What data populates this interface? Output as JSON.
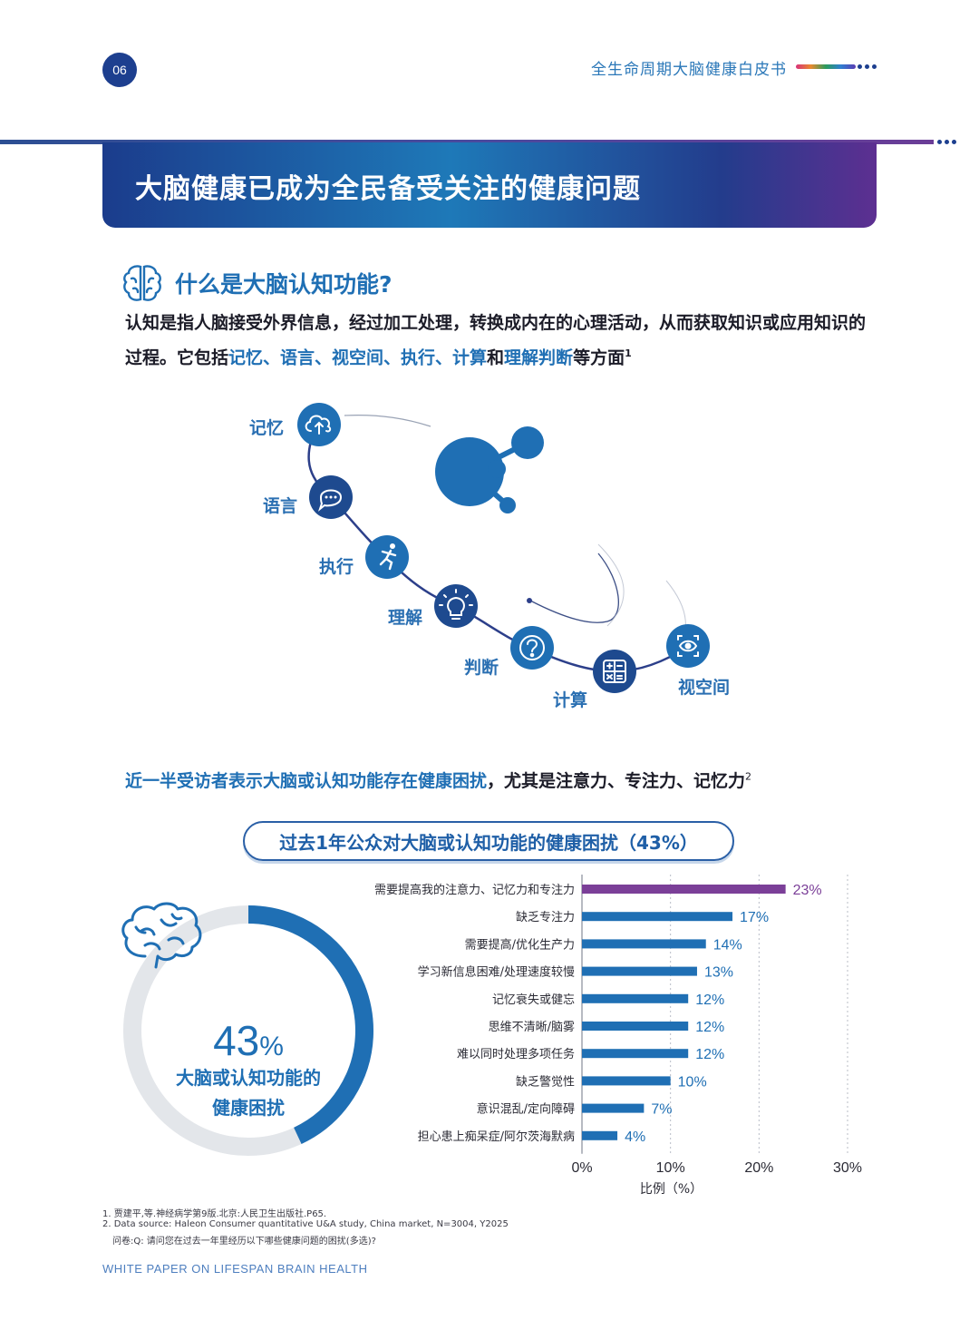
{
  "header": {
    "page_number": "06",
    "doc_title": "全生命周期大脑健康白皮书"
  },
  "banner": {
    "title": "大脑健康已成为全民备受关注的健康问题"
  },
  "section1": {
    "title": "什么是大脑认知功能?",
    "intro_part1": "认知是指人脑接受外界信息，经过加工处理，转换成内在的心理活动，从而获取知识或应用知识的过程。它包括",
    "intro_highlight1": "记忆、语言、视空间、执行、计算",
    "intro_and": "和",
    "intro_highlight2": "理解判断",
    "intro_end": "等方面",
    "intro_ref": "1"
  },
  "cognition": {
    "items": [
      {
        "label": "记忆",
        "icon": "cloud-upload-icon"
      },
      {
        "label": "语言",
        "icon": "speech-bubble-icon"
      },
      {
        "label": "执行",
        "icon": "running-person-icon"
      },
      {
        "label": "理解",
        "icon": "lightbulb-icon"
      },
      {
        "label": "判断",
        "icon": "question-mark-icon"
      },
      {
        "label": "计算",
        "icon": "calculator-icon"
      },
      {
        "label": "视空间",
        "icon": "eye-scan-icon"
      }
    ]
  },
  "section2": {
    "head_highlight": "近一半受访者表示大脑或认知功能存在健康困扰",
    "head_rest": "，尤其是注意力、专注力、记忆力",
    "head_ref": "2",
    "pill": "过去1年公众对大脑或认知功能的健康困扰（43%）"
  },
  "donut": {
    "percent_num": "43",
    "percent_sign": "%",
    "caption_line1": "大脑或认知功能的",
    "caption_line2": "健康困扰"
  },
  "chart_data": [
    {
      "type": "pie",
      "values": [
        43,
        57
      ],
      "categories": [
        "大脑或认知功能的健康困扰",
        ""
      ],
      "colors": [
        "#1f6fb4",
        "#e3e6ea"
      ]
    },
    {
      "type": "bar",
      "orientation": "horizontal",
      "categories": [
        "需要提高我的注意力、记忆力和专注力",
        "缺乏专注力",
        "需要提高/优化生产力",
        "学习新信息困难/处理速度较慢",
        "记忆衰失或健忘",
        "思维不清晰/脑雾",
        "难以同时处理多项任务",
        "缺乏警觉性",
        "意识混乱/定向障碍",
        "担心患上痴呆症/阿尔茨海默病"
      ],
      "values": [
        23,
        17,
        14,
        13,
        12,
        12,
        12,
        10,
        7,
        4
      ],
      "value_labels": [
        "23%",
        "17%",
        "14%",
        "13%",
        "12%",
        "12%",
        "12%",
        "10%",
        "7%",
        "4%"
      ],
      "bar_colors": [
        "#7b3f98",
        "#1f6fb4",
        "#1f6fb4",
        "#1f6fb4",
        "#1f6fb4",
        "#1f6fb4",
        "#1f6fb4",
        "#1f6fb4",
        "#1f6fb4",
        "#1f6fb4"
      ],
      "xlim": [
        0,
        30
      ],
      "xticks": [
        "0%",
        "10%",
        "20%",
        "30%"
      ],
      "xlabel": "比例（%）",
      "grid": true
    }
  ],
  "footnotes": {
    "f1": "1. 贾建平,等.神经病学第9版.北京:人民卫生出版社.P65.",
    "f2": "2. Data source: Haleon Consumer quantitative U&A study, China market, N=3004, Y2025",
    "f3": "问卷:Q: 请问您在过去一年里经历以下哪些健康问题的困扰(多选)?"
  },
  "footer": {
    "text": "WHITE PAPER ON LIFESPAN BRAIN HEALTH"
  }
}
